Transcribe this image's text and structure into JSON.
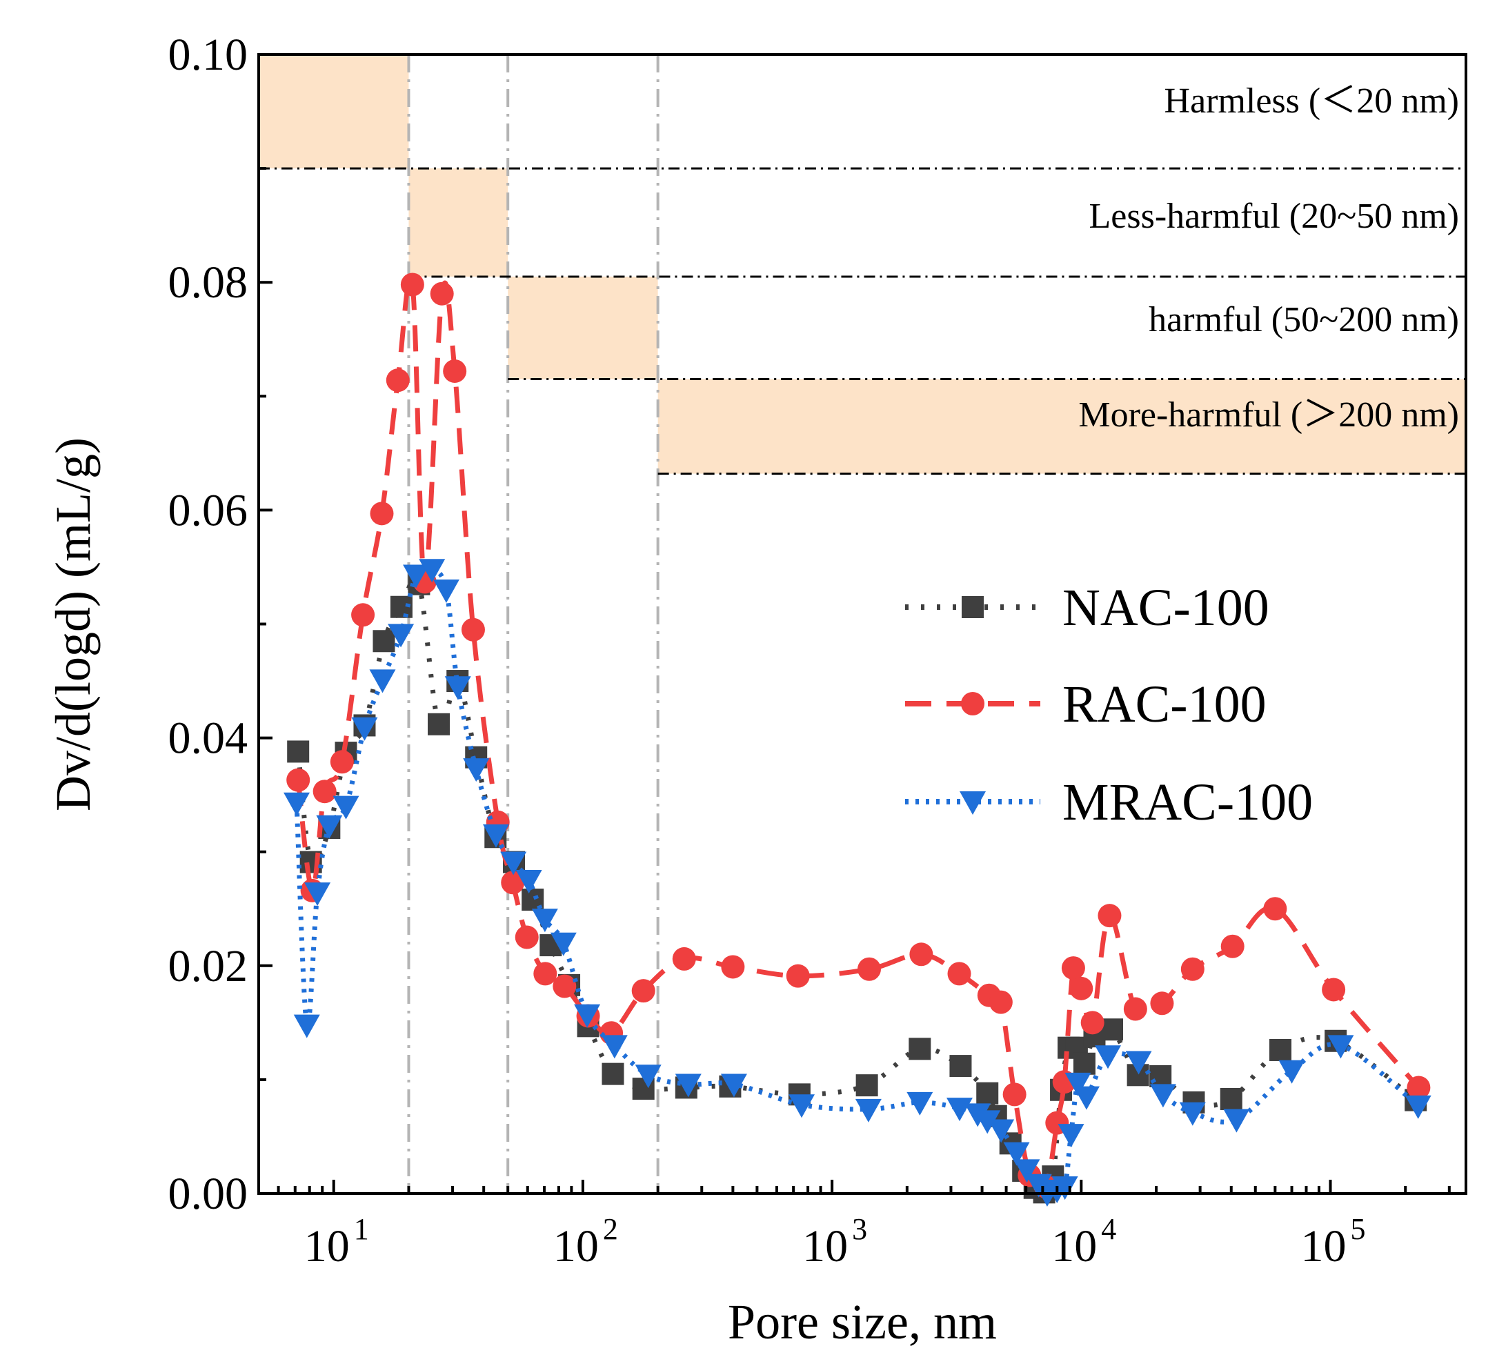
{
  "chart_data": {
    "type": "line",
    "xscale": "log",
    "xlim": [
      5,
      350000
    ],
    "ylim": [
      0,
      0.1
    ],
    "xlabel": "Pore size, nm",
    "ylabel": "Dv/d(logd) (mL/g)",
    "yticks": [
      {
        "value": 0.0,
        "label": "0.00"
      },
      {
        "value": 0.02,
        "label": "0.02"
      },
      {
        "value": 0.04,
        "label": "0.04"
      },
      {
        "value": 0.06,
        "label": "0.06"
      },
      {
        "value": 0.08,
        "label": "0.08"
      },
      {
        "value": 0.1,
        "label": "0.10"
      }
    ],
    "xticks": [
      {
        "value": 10,
        "base": "10",
        "exp": "1"
      },
      {
        "value": 100,
        "base": "10",
        "exp": "2"
      },
      {
        "value": 1000,
        "base": "10",
        "exp": "3"
      },
      {
        "value": 10000,
        "base": "10",
        "exp": "4"
      },
      {
        "value": 100000,
        "base": "10",
        "exp": "5"
      }
    ],
    "vlines": [
      20,
      50,
      200
    ],
    "zones": [
      {
        "label": "Harmless (＜20 nm)",
        "xmin": 5,
        "xmax": 20,
        "ybot": 0.09,
        "ytop": 0.1
      },
      {
        "label": "Less-harmful (20~50 nm)",
        "xmin": 20,
        "xmax": 50,
        "ybot": 0.0805,
        "ytop": 0.09
      },
      {
        "label": "harmful (50~200 nm)",
        "xmin": 50,
        "xmax": 200,
        "ybot": 0.0715,
        "ytop": 0.0805
      },
      {
        "label": "More-harmful (＞200 nm)",
        "xmin": 200,
        "xmax": 350000,
        "ybot": 0.0632,
        "ytop": 0.0715
      }
    ],
    "zone_color": "#fde3c8",
    "series": [
      {
        "name": "NAC-100",
        "color": "#3f3f3f",
        "marker": "square",
        "dash": "5 18",
        "x": [
          7.2,
          8.1,
          9.6,
          11.2,
          13.3,
          15.9,
          18.7,
          22.0,
          26.4,
          31.4,
          37.3,
          44.6,
          52.9,
          62.9,
          74.3,
          88.1,
          105,
          132,
          175,
          260,
          390,
          740,
          1380,
          2250,
          3280,
          4200,
          4550,
          5200,
          5850,
          6500,
          7100,
          7700,
          8300,
          8900,
          9600,
          10300,
          11300,
          13300,
          16900,
          20800,
          28300,
          40000,
          63000,
          105000,
          220000
        ],
        "y": [
          0.0388,
          0.0291,
          0.0321,
          0.0387,
          0.0411,
          0.0485,
          0.0515,
          0.0535,
          0.0412,
          0.045,
          0.0383,
          0.0313,
          0.0291,
          0.0258,
          0.0218,
          0.0183,
          0.0147,
          0.0105,
          0.0092,
          0.0093,
          0.0094,
          0.0087,
          0.0095,
          0.0127,
          0.0112,
          0.0088,
          0.0068,
          0.0044,
          0.002,
          0.0005,
          0.0001,
          0.0015,
          0.0091,
          0.0128,
          0.0128,
          0.0114,
          0.0138,
          0.0144,
          0.0104,
          0.0103,
          0.008,
          0.0083,
          0.0126,
          0.0134,
          0.0082
        ]
      },
      {
        "name": "RAC-100",
        "color": "#ef3f3f",
        "marker": "circle",
        "dash": "38 22",
        "x": [
          7.2,
          8.2,
          9.2,
          10.8,
          13.1,
          15.6,
          18.1,
          20.7,
          23.2,
          27.2,
          30.6,
          36.3,
          45.6,
          52.3,
          59.6,
          70.6,
          84.4,
          105,
          130,
          175,
          255,
          400,
          730,
          1410,
          2280,
          3240,
          4270,
          4760,
          5400,
          6200,
          7200,
          8000,
          8550,
          9300,
          10000,
          11100,
          13000,
          16500,
          21100,
          28000,
          40500,
          60000,
          103000,
          226000
        ],
        "y": [
          0.0363,
          0.0266,
          0.0353,
          0.0379,
          0.0508,
          0.0597,
          0.0714,
          0.0798,
          0.0537,
          0.079,
          0.0722,
          0.0495,
          0.0326,
          0.0273,
          0.0225,
          0.0193,
          0.0182,
          0.0156,
          0.0141,
          0.0178,
          0.0206,
          0.0199,
          0.0191,
          0.0197,
          0.021,
          0.0193,
          0.0174,
          0.0168,
          0.0087,
          0.0016,
          0.0006,
          0.0062,
          0.0098,
          0.0198,
          0.018,
          0.015,
          0.0244,
          0.0162,
          0.0167,
          0.0197,
          0.0217,
          0.025,
          0.0179,
          0.0093
        ]
      },
      {
        "name": "MRAC-100",
        "color": "#1f6fd8",
        "marker": "triangle-down",
        "dash": "5 10",
        "x": [
          7.1,
          7.8,
          8.6,
          9.6,
          11.2,
          13.3,
          15.7,
          18.6,
          21.4,
          24.8,
          28.3,
          31.5,
          37.3,
          44.8,
          52.6,
          60.7,
          70.4,
          83.6,
          104,
          134,
          183,
          265,
          404,
          755,
          1400,
          2250,
          3250,
          3840,
          4200,
          4770,
          5500,
          6050,
          6750,
          7300,
          8000,
          8600,
          9100,
          9700,
          10500,
          12800,
          17000,
          21300,
          28000,
          42000,
          70000,
          110000,
          225000
        ],
        "y": [
          0.0343,
          0.0148,
          0.0264,
          0.0323,
          0.034,
          0.0409,
          0.0451,
          0.0491,
          0.0543,
          0.0548,
          0.053,
          0.0445,
          0.0373,
          0.0315,
          0.0291,
          0.0275,
          0.0241,
          0.022,
          0.0157,
          0.013,
          0.0104,
          0.0096,
          0.0096,
          0.0078,
          0.0074,
          0.008,
          0.0075,
          0.007,
          0.0064,
          0.0056,
          0.0036,
          0.0021,
          0.0008,
          0.0,
          0.0003,
          0.0006,
          0.0052,
          0.0097,
          0.0085,
          0.0121,
          0.0116,
          0.0087,
          0.0071,
          0.0065,
          0.0108,
          0.013,
          0.0077
        ]
      }
    ]
  }
}
